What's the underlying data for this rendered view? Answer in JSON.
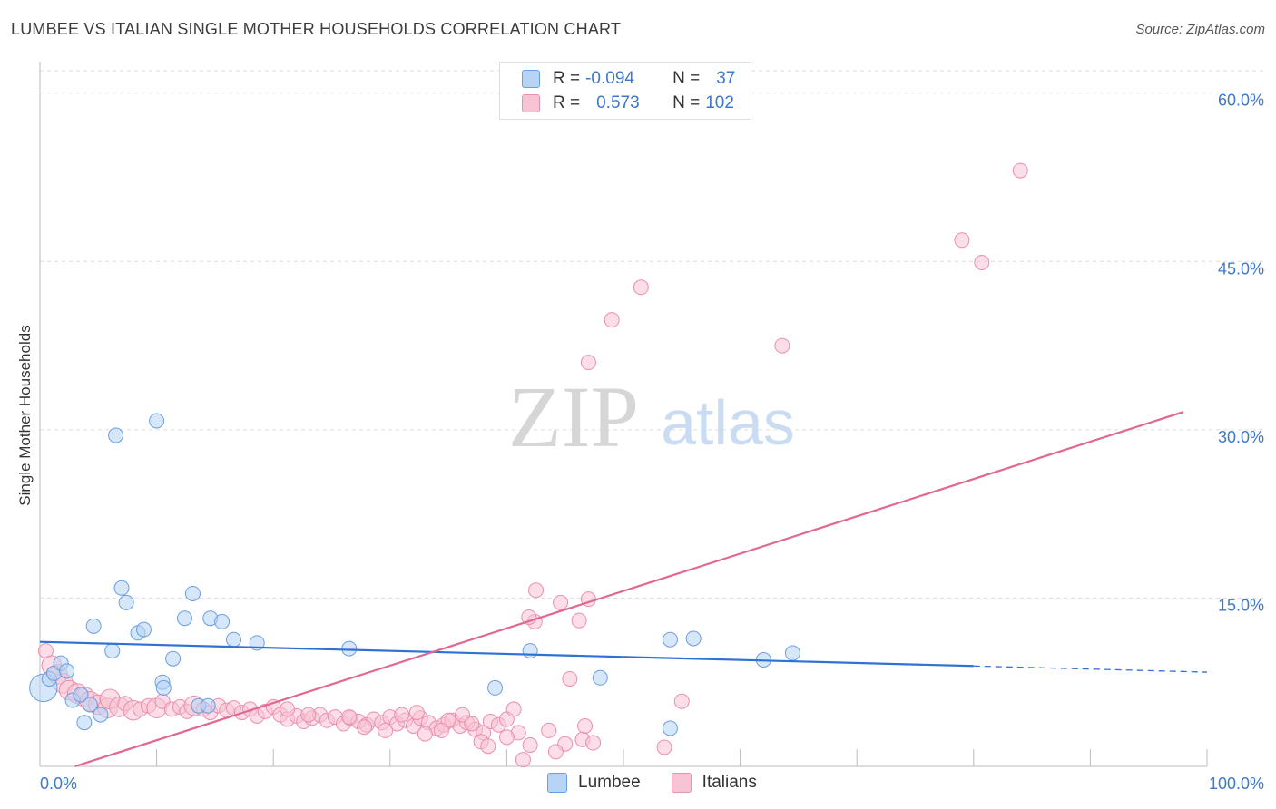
{
  "title": "LUMBEE VS ITALIAN SINGLE MOTHER HOUSEHOLDS CORRELATION CHART",
  "source": "Source: ZipAtlas.com",
  "watermark": {
    "zip": "ZIP",
    "atlas": "atlas"
  },
  "legend": {
    "lumbee": {
      "r_label": "R =",
      "r_value": "-0.094",
      "n_label": "N =",
      "n_value": "37"
    },
    "italians": {
      "r_label": "R =",
      "r_value": "0.573",
      "n_label": "N =",
      "n_value": "102"
    }
  },
  "colors": {
    "lumbee_fill": "#b7d3f5",
    "lumbee_stroke": "#6b9ee0",
    "lumbee_line": "#2f72d3",
    "italians_fill": "#f8c3d4",
    "italians_stroke": "#ea8fae",
    "italians_line": "#e06892",
    "tick_label": "#3e78cc",
    "grid": "#dddddd"
  },
  "chart_data": {
    "type": "scatter",
    "title": "LUMBEE VS ITALIAN SINGLE MOTHER HOUSEHOLDS CORRELATION CHART",
    "xlabel": "",
    "ylabel": "Single Mother Households",
    "xlim": [
      0,
      100
    ],
    "ylim": [
      0,
      62
    ],
    "x_tick_labels": [
      "0.0%",
      "100.0%"
    ],
    "y_ticks": [
      15,
      30,
      45,
      60
    ],
    "y_tick_labels": [
      "15.0%",
      "30.0%",
      "45.0%",
      "60.0%"
    ],
    "legend_entries": [
      "Lumbee",
      "Italians"
    ],
    "series": [
      {
        "name": "Lumbee",
        "r": -0.094,
        "n": 37,
        "trend": {
          "x0": 0,
          "y0": 11.1,
          "x1": 80,
          "y1": 8.95,
          "dashed_to": 100,
          "dashed_y": 8.4
        },
        "points": [
          [
            0.3,
            7.0,
            3
          ],
          [
            0.8,
            7.8,
            1
          ],
          [
            1.2,
            8.3,
            1
          ],
          [
            1.8,
            9.2,
            1
          ],
          [
            2.3,
            8.5,
            1
          ],
          [
            2.8,
            5.9,
            1
          ],
          [
            3.5,
            6.4,
            1
          ],
          [
            3.8,
            3.9,
            1
          ],
          [
            4.3,
            5.5,
            1
          ],
          [
            5.2,
            4.6,
            1
          ],
          [
            6.2,
            10.3,
            1
          ],
          [
            4.6,
            12.5,
            1
          ],
          [
            6.5,
            29.5,
            1
          ],
          [
            7.0,
            15.9,
            1
          ],
          [
            7.4,
            14.6,
            1
          ],
          [
            8.4,
            11.9,
            1
          ],
          [
            8.9,
            12.2,
            1
          ],
          [
            10.0,
            30.8,
            1
          ],
          [
            10.5,
            7.5,
            1
          ],
          [
            10.6,
            7.0,
            1
          ],
          [
            11.4,
            9.6,
            1
          ],
          [
            12.4,
            13.2,
            1
          ],
          [
            13.1,
            15.4,
            1
          ],
          [
            13.6,
            5.4,
            1
          ],
          [
            14.4,
            5.4,
            1
          ],
          [
            14.6,
            13.2,
            1
          ],
          [
            15.6,
            12.9,
            1
          ],
          [
            16.6,
            11.3,
            1
          ],
          [
            18.6,
            11.0,
            1
          ],
          [
            26.5,
            10.5,
            1
          ],
          [
            39.0,
            7.0,
            1
          ],
          [
            42.0,
            10.3,
            1
          ],
          [
            48.0,
            7.9,
            1
          ],
          [
            54.0,
            11.3,
            1
          ],
          [
            54.0,
            3.4,
            1
          ],
          [
            56.0,
            11.4,
            1
          ],
          [
            62.0,
            9.5,
            1
          ],
          [
            64.5,
            10.1,
            1
          ]
        ]
      },
      {
        "name": "Italians",
        "r": 0.573,
        "n": 102,
        "trend": {
          "x0": 3,
          "y0": 0,
          "x1": 98,
          "y1": 31.6
        },
        "points": [
          [
            0.5,
            10.3,
            1
          ],
          [
            1.0,
            9.0,
            2
          ],
          [
            1.5,
            8.2,
            2
          ],
          [
            2.0,
            7.4,
            2
          ],
          [
            2.5,
            6.8,
            2
          ],
          [
            3.2,
            6.5,
            2
          ],
          [
            3.8,
            6.2,
            2
          ],
          [
            4.3,
            5.8,
            2
          ],
          [
            5.0,
            5.5,
            2
          ],
          [
            5.8,
            5.2,
            2
          ],
          [
            6.0,
            6.0,
            2
          ],
          [
            6.8,
            5.3,
            2
          ],
          [
            7.3,
            5.6,
            1
          ],
          [
            8.0,
            5.0,
            2
          ],
          [
            8.6,
            5.1,
            1
          ],
          [
            9.3,
            5.4,
            1
          ],
          [
            10.0,
            5.2,
            2
          ],
          [
            10.5,
            5.8,
            1
          ],
          [
            11.3,
            5.1,
            1
          ],
          [
            12.0,
            5.3,
            1
          ],
          [
            12.6,
            4.9,
            1
          ],
          [
            13.2,
            5.4,
            2
          ],
          [
            14.0,
            5.1,
            1
          ],
          [
            14.6,
            4.8,
            1
          ],
          [
            15.3,
            5.4,
            1
          ],
          [
            16.0,
            5.0,
            1
          ],
          [
            16.6,
            5.2,
            1
          ],
          [
            17.3,
            4.8,
            1
          ],
          [
            18.0,
            5.1,
            1
          ],
          [
            18.6,
            4.5,
            1
          ],
          [
            19.3,
            4.9,
            1
          ],
          [
            20.0,
            5.3,
            1
          ],
          [
            20.6,
            4.6,
            1
          ],
          [
            21.2,
            4.2,
            1
          ],
          [
            22.0,
            4.5,
            1
          ],
          [
            22.6,
            4.0,
            1
          ],
          [
            23.3,
            4.3,
            1
          ],
          [
            24.0,
            4.6,
            1
          ],
          [
            24.6,
            4.1,
            1
          ],
          [
            25.3,
            4.4,
            1
          ],
          [
            26.0,
            3.8,
            1
          ],
          [
            26.6,
            4.3,
            1
          ],
          [
            27.3,
            4.0,
            1
          ],
          [
            28.0,
            3.7,
            1
          ],
          [
            28.6,
            4.2,
            1
          ],
          [
            29.3,
            3.9,
            1
          ],
          [
            30.0,
            4.4,
            1
          ],
          [
            30.6,
            3.8,
            1
          ],
          [
            31.3,
            4.1,
            1
          ],
          [
            32.0,
            3.6,
            1
          ],
          [
            32.6,
            4.3,
            1
          ],
          [
            33.3,
            3.9,
            1
          ],
          [
            34.0,
            3.4,
            1
          ],
          [
            34.6,
            3.7,
            1
          ],
          [
            35.3,
            4.1,
            1
          ],
          [
            36.0,
            3.6,
            1
          ],
          [
            36.6,
            3.9,
            1
          ],
          [
            37.3,
            3.3,
            1
          ],
          [
            38.0,
            3.0,
            1
          ],
          [
            38.6,
            4.0,
            1
          ],
          [
            39.3,
            3.7,
            1
          ],
          [
            40.0,
            4.2,
            1
          ],
          [
            40.6,
            5.1,
            1
          ],
          [
            41.0,
            3.0,
            1
          ],
          [
            21.2,
            5.1,
            1
          ],
          [
            23.0,
            4.6,
            1
          ],
          [
            26.5,
            4.4,
            1
          ],
          [
            31.0,
            4.6,
            1
          ],
          [
            32.3,
            4.8,
            1
          ],
          [
            35.0,
            4.1,
            1
          ],
          [
            36.2,
            4.6,
            1
          ],
          [
            37.0,
            3.8,
            1
          ],
          [
            27.8,
            3.5,
            1
          ],
          [
            29.6,
            3.2,
            1
          ],
          [
            33.0,
            2.9,
            1
          ],
          [
            34.4,
            3.2,
            1
          ],
          [
            37.8,
            2.2,
            1
          ],
          [
            38.4,
            1.8,
            1
          ],
          [
            40.0,
            2.6,
            1
          ],
          [
            41.4,
            0.6,
            1
          ],
          [
            42.0,
            1.9,
            1
          ],
          [
            42.4,
            12.9,
            1
          ],
          [
            41.9,
            13.3,
            1
          ],
          [
            42.5,
            15.7,
            1
          ],
          [
            44.6,
            14.6,
            1
          ],
          [
            45.0,
            2.0,
            1
          ],
          [
            46.5,
            2.4,
            1
          ],
          [
            43.6,
            3.2,
            1
          ],
          [
            44.2,
            1.3,
            1
          ],
          [
            46.7,
            3.6,
            1
          ],
          [
            47.4,
            2.1,
            1
          ],
          [
            46.2,
            13.0,
            1
          ],
          [
            47.0,
            14.9,
            1
          ],
          [
            45.4,
            7.8,
            1
          ],
          [
            47.0,
            36.0,
            1
          ],
          [
            49.0,
            39.8,
            1
          ],
          [
            51.5,
            42.7,
            1
          ],
          [
            53.5,
            1.7,
            1
          ],
          [
            55.0,
            5.8,
            1
          ],
          [
            63.6,
            37.5,
            1
          ],
          [
            79.0,
            46.9,
            1
          ],
          [
            80.7,
            44.9,
            1
          ],
          [
            84.0,
            53.1,
            1
          ]
        ]
      }
    ]
  },
  "bottom_legend": {
    "lumbee": "Lumbee",
    "italians": "Italians"
  }
}
